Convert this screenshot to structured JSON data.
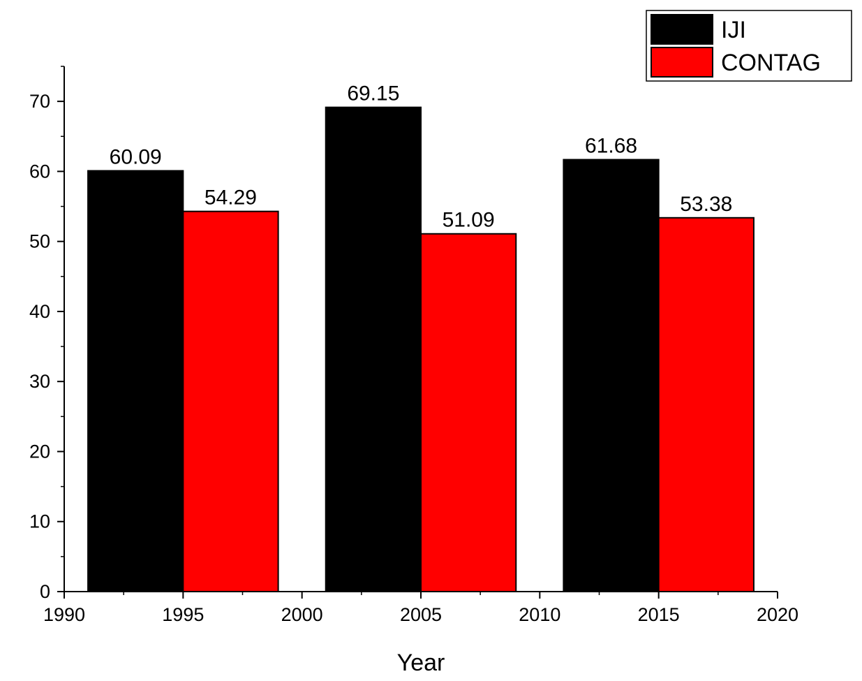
{
  "chart_data": {
    "type": "bar",
    "title": "",
    "xlabel": "Year",
    "ylabel": "",
    "xlim": [
      1990,
      2020
    ],
    "ylim": [
      0,
      75
    ],
    "xticks": [
      "1990",
      "1995",
      "2000",
      "2005",
      "2010",
      "2015",
      "2020"
    ],
    "yticks": [
      "0",
      "10",
      "20",
      "30",
      "40",
      "50",
      "60",
      "70"
    ],
    "grid": false,
    "legend_position": "top-right",
    "categories": [
      "1995",
      "2005",
      "2015"
    ],
    "series": [
      {
        "name": "IJI",
        "color": "#000000",
        "x_start": [
          1991,
          2001,
          2011
        ],
        "x_end": [
          1995,
          2005,
          2015
        ],
        "values": [
          60.09,
          69.15,
          61.68
        ],
        "labels": [
          "60.09",
          "69.15",
          "61.68"
        ]
      },
      {
        "name": "CONTAG",
        "color": "#ff0000",
        "x_start": [
          1995,
          2005,
          2015
        ],
        "x_end": [
          1999,
          2009,
          2019
        ],
        "values": [
          54.29,
          51.09,
          53.38
        ],
        "labels": [
          "54.29",
          "51.09",
          "53.38"
        ]
      }
    ]
  }
}
